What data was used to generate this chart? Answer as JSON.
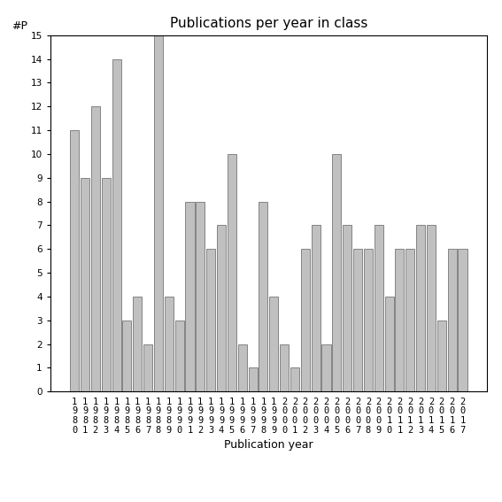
{
  "title": "Publications per year in class",
  "xlabel": "Publication year",
  "ylabel": "#P",
  "years": [
    "1980",
    "1981",
    "1982",
    "1983",
    "1984",
    "1985",
    "1986",
    "1987",
    "1988",
    "1989",
    "1990",
    "1991",
    "1992",
    "1993",
    "1994",
    "1995",
    "1996",
    "1997",
    "1998",
    "1999",
    "2000",
    "2001",
    "2002",
    "2003",
    "2004",
    "2005",
    "2006",
    "2007",
    "2008",
    "2009",
    "2010",
    "2011",
    "2012",
    "2013",
    "2014",
    "2015",
    "2016",
    "2017"
  ],
  "values": [
    11,
    9,
    12,
    9,
    14,
    3,
    4,
    2,
    15,
    4,
    3,
    8,
    8,
    6,
    7,
    10,
    2,
    1,
    8,
    4,
    2,
    1,
    6,
    7,
    2,
    10,
    7,
    6,
    6,
    7,
    4,
    6,
    6,
    7,
    7,
    3,
    6,
    6
  ],
  "bar_color": "#c0c0c0",
  "bar_edge_color": "#606060",
  "ylim": [
    0,
    15
  ],
  "yticks": [
    0,
    1,
    2,
    3,
    4,
    5,
    6,
    7,
    8,
    9,
    10,
    11,
    12,
    13,
    14,
    15
  ],
  "background_color": "#ffffff",
  "title_fontsize": 11,
  "label_fontsize": 9,
  "tick_fontsize": 7.5
}
